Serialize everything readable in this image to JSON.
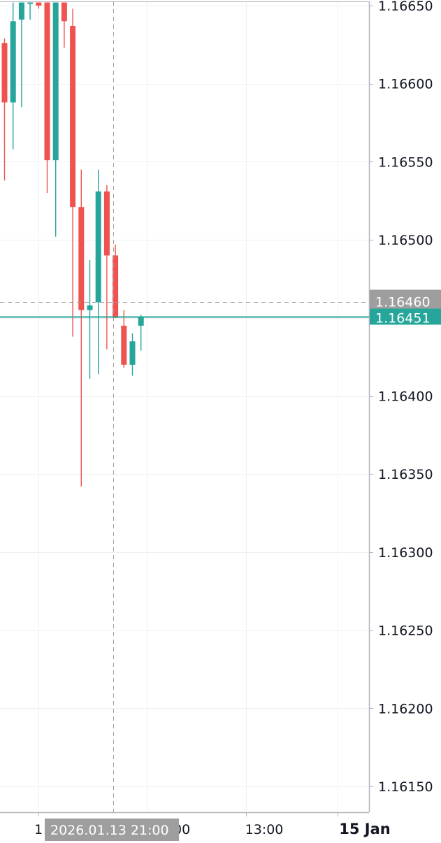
{
  "chart_data": {
    "type": "candlestick",
    "y_axis": {
      "ylim": [
        1.1613,
        1.16652
      ],
      "ticks": [
        "1.16650",
        "1.16600",
        "1.16550",
        "1.16500",
        "1.16400",
        "1.16350",
        "1.16300",
        "1.16250",
        "1.16200",
        "1.16150"
      ],
      "position": "right"
    },
    "x_axis": {
      "labels": [
        {
          "text": "1",
          "bold": false
        },
        {
          "text": "13:00",
          "bold": false
        },
        {
          "text": "15 Jan",
          "bold": true
        }
      ]
    },
    "grid": true,
    "crosshair": {
      "price_label": "1.16460",
      "time_label": "2026.01.13 21:00",
      "price": 1.1646
    },
    "last_price": {
      "label": "1.16451",
      "price": 1.16451
    },
    "colors": {
      "up": "#26a69a",
      "down": "#ef5350",
      "grid": "#f0f0f0",
      "crosshair": "#9e9e9e",
      "crosshair_badge": "#9e9e9e",
      "axis_line": "#b2b5be"
    },
    "candles": [
      {
        "open": 1.16626,
        "high": 1.16629,
        "low": 1.16538,
        "close": 1.16588
      },
      {
        "open": 1.16588,
        "high": 1.16652,
        "low": 1.16558,
        "close": 1.1664
      },
      {
        "open": 1.16641,
        "high": 1.16652,
        "low": 1.16585,
        "close": 1.16652
      },
      {
        "open": 1.16652,
        "high": 1.16652,
        "low": 1.16641,
        "close": 1.16652
      },
      {
        "open": 1.16652,
        "high": 1.16652,
        "low": 1.16648,
        "close": 1.1665
      },
      {
        "open": 1.16652,
        "high": 1.16652,
        "low": 1.1653,
        "close": 1.16551
      },
      {
        "open": 1.16551,
        "high": 1.16652,
        "low": 1.16502,
        "close": 1.16652
      },
      {
        "open": 1.16652,
        "high": 1.16652,
        "low": 1.16623,
        "close": 1.1664
      },
      {
        "open": 1.16637,
        "high": 1.16648,
        "low": 1.16438,
        "close": 1.16521
      },
      {
        "open": 1.16521,
        "high": 1.16545,
        "low": 1.16342,
        "close": 1.16455
      },
      {
        "open": 1.16455,
        "high": 1.16487,
        "low": 1.16411,
        "close": 1.16458
      },
      {
        "open": 1.1646,
        "high": 1.16545,
        "low": 1.16414,
        "close": 1.16531
      },
      {
        "open": 1.16531,
        "high": 1.16535,
        "low": 1.1643,
        "close": 1.1649
      },
      {
        "open": 1.1649,
        "high": 1.16497,
        "low": 1.1645,
        "close": 1.1645
      },
      {
        "open": 1.16445,
        "high": 1.16455,
        "low": 1.16418,
        "close": 1.1642
      },
      {
        "open": 1.1642,
        "high": 1.1644,
        "low": 1.16413,
        "close": 1.16435
      },
      {
        "open": 1.16445,
        "high": 1.16452,
        "low": 1.16429,
        "close": 1.16451
      }
    ]
  }
}
